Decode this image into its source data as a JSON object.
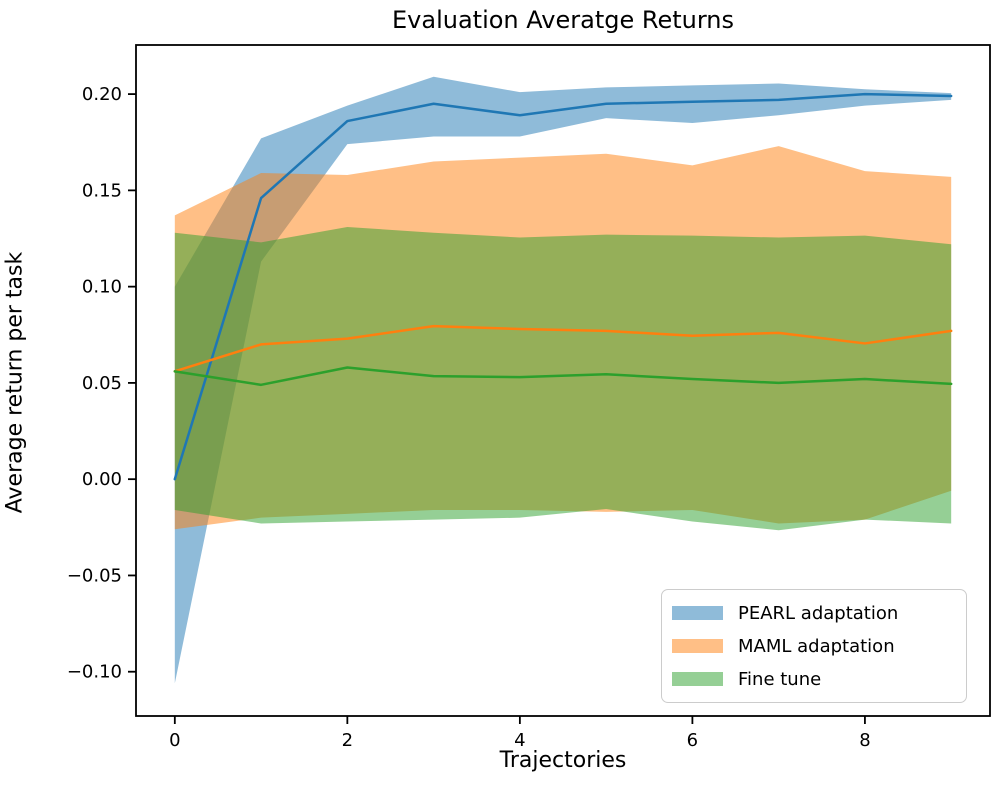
{
  "chart_data": {
    "type": "line",
    "title": "Evaluation Averatge Returns",
    "xlabel": "Trajectories",
    "ylabel": "Average return per task",
    "grid": false,
    "legend_position": "lower right",
    "xlim": [
      -0.45,
      9.45
    ],
    "ylim": [
      -0.123,
      0.2255
    ],
    "xticks": [
      0,
      2,
      4,
      6,
      8
    ],
    "xtick_labels": [
      "0",
      "2",
      "4",
      "6",
      "8"
    ],
    "yticks": [
      0.2,
      0.15,
      0.1,
      0.05,
      0.0,
      -0.05,
      -0.1
    ],
    "ytick_labels": [
      "0.20",
      "0.15",
      "0.10",
      "0.05",
      "0.00",
      "−0.05",
      "−0.10"
    ],
    "x": [
      0,
      1,
      2,
      3,
      4,
      5,
      6,
      7,
      8,
      9
    ],
    "band_alpha": 0.5,
    "series": [
      {
        "name": "PEARL adaptation",
        "color": "#1f77b4",
        "values": [
          0.0,
          0.146,
          0.186,
          0.195,
          0.189,
          0.195,
          0.196,
          0.197,
          0.2,
          0.199
        ],
        "band_top": [
          0.1,
          0.177,
          0.194,
          0.209,
          0.201,
          0.2035,
          0.2045,
          0.2055,
          0.2025,
          0.2005
        ],
        "band_bottom": [
          -0.106,
          0.113,
          0.174,
          0.178,
          0.178,
          0.1875,
          0.185,
          0.189,
          0.194,
          0.197
        ]
      },
      {
        "name": "MAML adaptation",
        "color": "#ff7f0e",
        "values": [
          0.056,
          0.07,
          0.073,
          0.0795,
          0.078,
          0.077,
          0.0745,
          0.076,
          0.0705,
          0.077
        ],
        "band_top": [
          0.137,
          0.159,
          0.158,
          0.165,
          0.167,
          0.169,
          0.163,
          0.173,
          0.16,
          0.157
        ],
        "band_bottom": [
          -0.026,
          -0.02,
          -0.018,
          -0.016,
          -0.016,
          -0.017,
          -0.016,
          -0.023,
          -0.021,
          -0.006
        ]
      },
      {
        "name": "Fine tune",
        "color": "#2ca02c",
        "values": [
          0.056,
          0.049,
          0.058,
          0.0535,
          0.053,
          0.0545,
          0.052,
          0.05,
          0.052,
          0.0495
        ],
        "band_top": [
          0.128,
          0.123,
          0.131,
          0.128,
          0.1255,
          0.127,
          0.1265,
          0.1255,
          0.1265,
          0.122
        ],
        "band_bottom": [
          -0.016,
          -0.023,
          -0.022,
          -0.021,
          -0.02,
          -0.0155,
          -0.022,
          -0.0265,
          -0.021,
          -0.023
        ]
      }
    ]
  }
}
